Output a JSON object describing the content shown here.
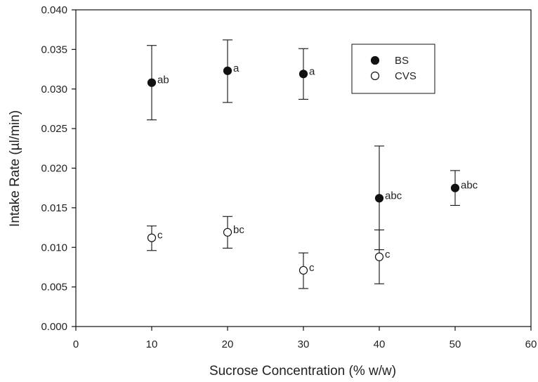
{
  "chart_data": {
    "type": "scatter",
    "title": "",
    "xlabel": "Sucrose Concentration (% w/w)",
    "ylabel": "Intake Rate (µl/min)",
    "xlim": [
      0,
      60
    ],
    "ylim": [
      0,
      0.04
    ],
    "xticks": [
      "0",
      "10",
      "20",
      "30",
      "40",
      "50",
      "60"
    ],
    "yticks": [
      "0.000",
      "0.005",
      "0.010",
      "0.015",
      "0.020",
      "0.025",
      "0.030",
      "0.035",
      "0.040"
    ],
    "grid": false,
    "legend_position": "top-right",
    "series": [
      {
        "name": "BS",
        "marker": "filled-circle",
        "color": "#111111",
        "points": [
          {
            "x": 10,
            "y": 0.0308,
            "err_low": 0.0261,
            "err_high": 0.0355,
            "label": "ab"
          },
          {
            "x": 20,
            "y": 0.0323,
            "err_low": 0.0283,
            "err_high": 0.0362,
            "label": "a"
          },
          {
            "x": 30,
            "y": 0.0319,
            "err_low": 0.0287,
            "err_high": 0.0351,
            "label": "a"
          },
          {
            "x": 40,
            "y": 0.0162,
            "err_low": 0.0097,
            "err_high": 0.0228,
            "label": "abc"
          },
          {
            "x": 50,
            "y": 0.0175,
            "err_low": 0.0153,
            "err_high": 0.0197,
            "label": "abc"
          }
        ]
      },
      {
        "name": "CVS",
        "marker": "open-circle",
        "color": "#111111",
        "points": [
          {
            "x": 10,
            "y": 0.0112,
            "err_low": 0.0096,
            "err_high": 0.0127,
            "label": "c"
          },
          {
            "x": 20,
            "y": 0.0119,
            "err_low": 0.0099,
            "err_high": 0.0139,
            "label": "bc"
          },
          {
            "x": 30,
            "y": 0.0071,
            "err_low": 0.0048,
            "err_high": 0.0093,
            "label": "c"
          },
          {
            "x": 40,
            "y": 0.0088,
            "err_low": 0.0054,
            "err_high": 0.0122,
            "label": "c"
          }
        ]
      }
    ]
  }
}
